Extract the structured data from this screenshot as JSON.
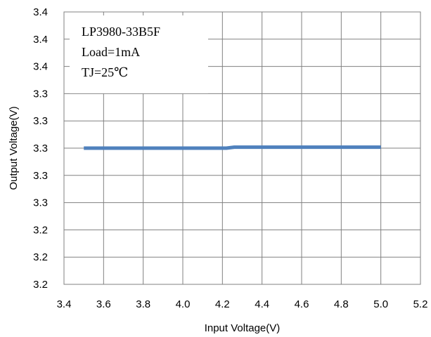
{
  "chart_data": {
    "type": "line",
    "title": "",
    "xlabel": "Input Voltage(V)",
    "ylabel": "Output Voltage(V)",
    "xlim": [
      3.4,
      5.2
    ],
    "ylim": [
      3.2,
      3.4
    ],
    "x_ticks": [
      "3.4",
      "3.6",
      "3.8",
      "4.0",
      "4.2",
      "4.4",
      "4.6",
      "4.8",
      "5.0",
      "5.2"
    ],
    "y_ticks": [
      "3.4",
      "3.4",
      "3.4",
      "3.3",
      "3.3",
      "3.3",
      "3.3",
      "3.3",
      "3.2",
      "3.2",
      "3.2"
    ],
    "grid": true,
    "legend": "none",
    "annotations": [
      "LP3980-33B5F",
      "Load=1mA",
      "TJ=25℃"
    ],
    "series": [
      {
        "color": "#4F81BD",
        "x": [
          3.5,
          4.2,
          4.22,
          4.26,
          5.0
        ],
        "y": [
          3.3,
          3.3,
          3.3,
          3.3007,
          3.3007
        ]
      }
    ]
  }
}
